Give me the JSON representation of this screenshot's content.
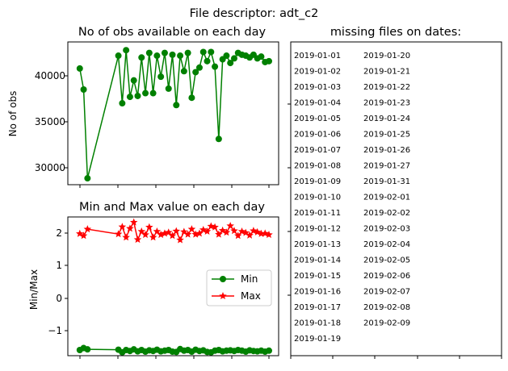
{
  "figure": {
    "suptitle": "File descriptor: adt_c2"
  },
  "panels": {
    "obs": {
      "title": "No of obs available on each day",
      "ylabel": "No of obs",
      "yticks": [
        "30000",
        "35000",
        "40000"
      ]
    },
    "minmax": {
      "title": "Min and Max value on each day",
      "ylabel": "Min/Max",
      "yticks": [
        "−1",
        "0",
        "1",
        "2"
      ]
    },
    "missing": {
      "title": "missing files on dates:",
      "dates_col1": [
        "2019-01-01",
        "2019-01-02",
        "2019-01-03",
        "2019-01-04",
        "2019-01-05",
        "2019-01-06",
        "2019-01-07",
        "2019-01-08",
        "2019-01-09",
        "2019-01-10",
        "2019-01-11",
        "2019-01-12",
        "2019-01-13",
        "2019-01-14",
        "2019-01-15",
        "2019-01-16",
        "2019-01-17",
        "2019-01-18",
        "2019-01-19"
      ],
      "dates_col2": [
        "2019-01-20",
        "2019-01-21",
        "2019-01-22",
        "2019-01-23",
        "2019-01-24",
        "2019-01-25",
        "2019-01-26",
        "2019-01-27",
        "2019-01-31",
        "2019-02-01",
        "2019-02-02",
        "2019-02-03",
        "2019-02-04",
        "2019-02-05",
        "2019-02-06",
        "2019-02-07",
        "2019-02-08",
        "2019-02-09"
      ]
    }
  },
  "chart_data": [
    {
      "type": "line",
      "title": "No of obs available on each day",
      "xlabel": "",
      "ylabel": "No of obs",
      "ylim": [
        28200,
        43800
      ],
      "grid": false,
      "color": "#008000",
      "marker": "circle",
      "x": [
        0,
        1,
        2,
        10,
        11,
        12,
        13,
        14,
        15,
        16,
        17,
        18,
        19,
        20,
        21,
        22,
        23,
        24,
        25,
        26,
        27,
        28,
        29,
        30,
        31,
        32,
        33,
        34,
        35,
        36,
        37,
        38,
        39,
        40,
        41,
        42,
        43,
        44,
        45,
        46,
        47,
        48,
        49
      ],
      "values": [
        40900,
        38600,
        28900,
        42300,
        37100,
        42900,
        37800,
        39600,
        37900,
        42100,
        38200,
        42600,
        38200,
        42300,
        40000,
        42600,
        38700,
        42400,
        36900,
        42300,
        40600,
        42600,
        37700,
        40500,
        41000,
        42700,
        41700,
        42700,
        41100,
        33200,
        41900,
        42300,
        41500,
        42000,
        42600,
        42400,
        42300,
        42100,
        42400,
        42000,
        42200,
        41600,
        41700
      ]
    },
    {
      "type": "line",
      "title": "Min and Max value on each day",
      "xlabel": "",
      "ylabel": "Min/Max",
      "ylim": [
        -1.9,
        2.6
      ],
      "grid": false,
      "legend": "center-right",
      "series": [
        {
          "name": "Min",
          "color": "#008000",
          "marker": "circle",
          "x": [
            0,
            1,
            2,
            10,
            11,
            12,
            13,
            14,
            15,
            16,
            17,
            18,
            19,
            20,
            21,
            22,
            23,
            24,
            25,
            26,
            27,
            28,
            29,
            30,
            31,
            32,
            33,
            34,
            35,
            36,
            37,
            38,
            39,
            40,
            41,
            42,
            43,
            44,
            45,
            46,
            47,
            48,
            49
          ],
          "values": [
            -1.58,
            -1.52,
            -1.56,
            -1.57,
            -1.65,
            -1.58,
            -1.61,
            -1.56,
            -1.62,
            -1.58,
            -1.63,
            -1.59,
            -1.61,
            -1.57,
            -1.62,
            -1.6,
            -1.58,
            -1.63,
            -1.64,
            -1.55,
            -1.6,
            -1.58,
            -1.63,
            -1.57,
            -1.61,
            -1.59,
            -1.64,
            -1.65,
            -1.6,
            -1.58,
            -1.62,
            -1.6,
            -1.59,
            -1.61,
            -1.58,
            -1.6,
            -1.63,
            -1.59,
            -1.61,
            -1.62,
            -1.6,
            -1.63,
            -1.6
          ]
        },
        {
          "name": "Max",
          "color": "#ff0000",
          "marker": "star",
          "x": [
            0,
            1,
            2,
            10,
            11,
            12,
            13,
            14,
            15,
            16,
            17,
            18,
            19,
            20,
            21,
            22,
            23,
            24,
            25,
            26,
            27,
            28,
            29,
            30,
            31,
            32,
            33,
            34,
            35,
            36,
            37,
            38,
            39,
            40,
            41,
            42,
            43,
            44,
            45,
            46,
            47,
            48,
            49
          ],
          "values": [
            1.98,
            1.92,
            2.12,
            1.97,
            2.19,
            1.87,
            2.14,
            2.33,
            1.8,
            2.05,
            1.95,
            2.18,
            1.87,
            2.05,
            1.95,
            1.99,
            2.02,
            1.92,
            2.06,
            1.79,
            2.04,
            1.96,
            2.12,
            1.96,
            1.99,
            2.1,
            2.05,
            2.21,
            2.18,
            1.96,
            2.08,
            2.02,
            2.22,
            2.07,
            1.92,
            2.05,
            2.01,
            1.93,
            2.07,
            2.03,
            1.98,
            1.99,
            1.95
          ]
        }
      ]
    }
  ]
}
